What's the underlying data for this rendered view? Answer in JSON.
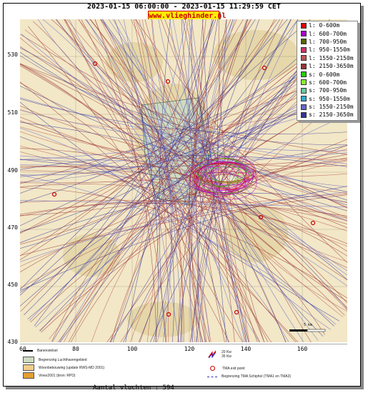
{
  "header": {
    "title": "2023-01-15 06:00:00 - 2023-01-15 11:29:59 CET",
    "brand": "www.vlieghinder.nl"
  },
  "axes": {
    "y_ticks": [
      "530",
      "510",
      "490",
      "470",
      "450",
      "430"
    ],
    "x_ticks": [
      "60",
      "80",
      "100",
      "120",
      "140",
      "160"
    ]
  },
  "legend": [
    {
      "label": "l: 0-600m",
      "color": "#dd0000"
    },
    {
      "label": "l: 600-700m",
      "color": "#aa00cc"
    },
    {
      "label": "l: 700-950m",
      "color": "#556600"
    },
    {
      "label": "l: 950-1550m",
      "color": "#cc3366"
    },
    {
      "label": "l: 1550-2150m",
      "color": "#bb5555"
    },
    {
      "label": "l: 2150-3650m",
      "color": "#993333"
    },
    {
      "label": "s: 0-600m",
      "color": "#22cc00"
    },
    {
      "label": "s: 600-700m",
      "color": "#88ee33"
    },
    {
      "label": "s: 700-950m",
      "color": "#66cc99"
    },
    {
      "label": "s: 950-1550m",
      "color": "#33aacc"
    },
    {
      "label": "s: 1550-2150m",
      "color": "#6666cc"
    },
    {
      "label": "s: 2150-3650m",
      "color": "#333399"
    }
  ],
  "key": {
    "banenstelsel": "Banenstelsel",
    "luchthaven": "Begrenzing Luchthavengebied",
    "woonbebouwing": "Woonbebouwing (update RWS-MD 2001)",
    "vinex": "Vinex2001 (bron: RPD)",
    "wind_20": "20 Kw",
    "wind_35": "35 Kw",
    "tma_exit": "TMA exit point",
    "tma_boundary": "Begrenzing TMA Schiphol  (TMA1 en TMA3)"
  },
  "count_text": "Aantal vluchten : 594",
  "scale_text": "5 km",
  "colors": {
    "brand_bg": "#ffee00",
    "brand_text": "#cc0000",
    "land": "#f2e7c6",
    "urban": "#ddcfa0",
    "airport": "#cfdcc0"
  }
}
